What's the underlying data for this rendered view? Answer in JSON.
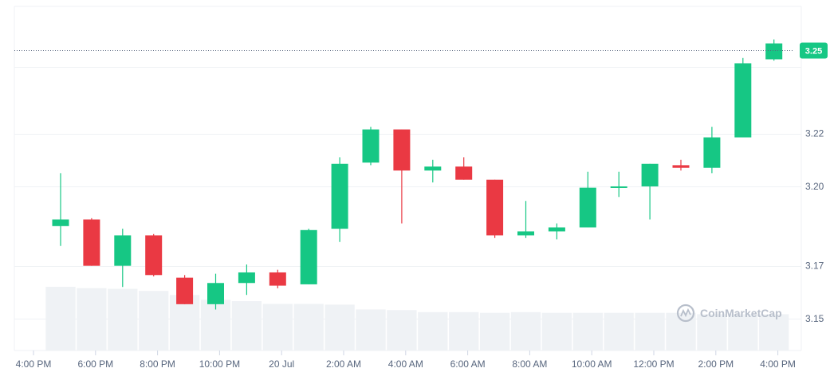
{
  "chart_data": {
    "type": "candlestick",
    "colors": {
      "up": "#16c784",
      "down": "#ea3943",
      "volume": "#eff2f5",
      "grid": "#eff2f5",
      "axis_text": "#58667e"
    },
    "x_tick_labels": [
      "4:00 PM",
      "6:00 PM",
      "8:00 PM",
      "10:00 PM",
      "20 Jul",
      "2:00 AM",
      "4:00 AM",
      "6:00 AM",
      "8:00 AM",
      "10:00 AM",
      "12:00 PM",
      "2:00 PM",
      "4:00 PM"
    ],
    "y_tick_labels": [
      "3.15",
      "3.17",
      "3.20",
      "3.22"
    ],
    "y_ticks": [
      3.15,
      3.17,
      3.2,
      3.22
    ],
    "ylim": [
      3.138,
      3.268
    ],
    "current_price": {
      "label": "3.25",
      "value": 3.2513
    },
    "candles": [
      {
        "o": 3.185,
        "h": 3.205,
        "l": 3.1775,
        "c": 3.1875
      },
      {
        "o": 3.1875,
        "h": 3.188,
        "l": 3.17,
        "c": 3.17
      },
      {
        "o": 3.17,
        "h": 3.184,
        "l": 3.162,
        "c": 3.1815
      },
      {
        "o": 3.1815,
        "h": 3.182,
        "l": 3.166,
        "c": 3.1665
      },
      {
        "o": 3.1655,
        "h": 3.1665,
        "l": 3.1555,
        "c": 3.1555
      },
      {
        "o": 3.1555,
        "h": 3.167,
        "l": 3.1535,
        "c": 3.1635
      },
      {
        "o": 3.1635,
        "h": 3.1705,
        "l": 3.159,
        "c": 3.1675
      },
      {
        "o": 3.1675,
        "h": 3.1685,
        "l": 3.1615,
        "c": 3.1625
      },
      {
        "o": 3.163,
        "h": 3.184,
        "l": 3.163,
        "c": 3.1835
      },
      {
        "o": 3.184,
        "h": 3.211,
        "l": 3.179,
        "c": 3.2085
      },
      {
        "o": 3.209,
        "h": 3.2225,
        "l": 3.208,
        "c": 3.2215
      },
      {
        "o": 3.2215,
        "h": 3.2215,
        "l": 3.186,
        "c": 3.206
      },
      {
        "o": 3.206,
        "h": 3.21,
        "l": 3.2015,
        "c": 3.2075
      },
      {
        "o": 3.2075,
        "h": 3.211,
        "l": 3.2025,
        "c": 3.2025
      },
      {
        "o": 3.2025,
        "h": 3.2025,
        "l": 3.1805,
        "c": 3.1815
      },
      {
        "o": 3.1815,
        "h": 3.1945,
        "l": 3.1805,
        "c": 3.183
      },
      {
        "o": 3.183,
        "h": 3.186,
        "l": 3.18,
        "c": 3.1845
      },
      {
        "o": 3.1845,
        "h": 3.2055,
        "l": 3.1845,
        "c": 3.1995
      },
      {
        "o": 3.1995,
        "h": 3.2055,
        "l": 3.196,
        "c": 3.2
      },
      {
        "o": 3.2,
        "h": 3.2085,
        "l": 3.1875,
        "c": 3.2085
      },
      {
        "o": 3.208,
        "h": 3.21,
        "l": 3.206,
        "c": 3.207
      },
      {
        "o": 3.207,
        "h": 3.2225,
        "l": 3.205,
        "c": 3.2185
      },
      {
        "o": 3.2185,
        "h": 3.2485,
        "l": 3.2185,
        "c": 3.2465
      },
      {
        "o": 3.248,
        "h": 3.2555,
        "l": 3.2475,
        "c": 3.254
      }
    ],
    "volume": [
      0.93,
      0.91,
      0.9,
      0.87,
      0.81,
      0.74,
      0.72,
      0.68,
      0.68,
      0.67,
      0.6,
      0.59,
      0.56,
      0.56,
      0.55,
      0.56,
      0.55,
      0.55,
      0.55,
      0.55,
      0.55,
      0.53,
      0.53,
      0.53
    ],
    "watermark": "CoinMarketCap"
  }
}
